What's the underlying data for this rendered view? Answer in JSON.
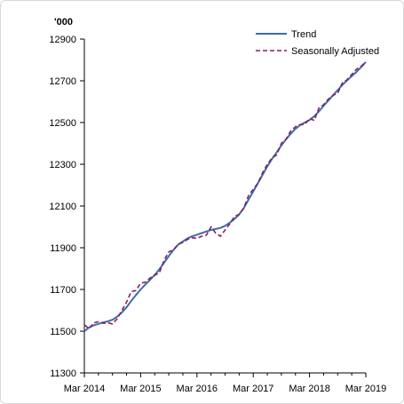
{
  "chart_data": {
    "type": "line",
    "unit_label": "'000",
    "ylim": [
      11300,
      12900
    ],
    "yticks": [
      11300,
      11500,
      11700,
      11900,
      12100,
      12300,
      12500,
      12700,
      12900
    ],
    "xlim": [
      0,
      60
    ],
    "xticks": [
      {
        "label": "Mar 2014",
        "x": 0
      },
      {
        "label": "Mar 2015",
        "x": 12
      },
      {
        "label": "Mar 2016",
        "x": 24
      },
      {
        "label": "Mar 2017",
        "x": 36
      },
      {
        "label": "Mar 2018",
        "x": 48
      },
      {
        "label": "Mar 2019",
        "x": 60
      }
    ],
    "legend_position": "top-right",
    "grid": false,
    "series": [
      {
        "name": "Trend",
        "color": "#3a6fa8",
        "style": "solid",
        "x": [
          0,
          1,
          2,
          3,
          4,
          5,
          6,
          7,
          8,
          9,
          10,
          11,
          12,
          13,
          14,
          15,
          16,
          17,
          18,
          19,
          20,
          21,
          22,
          23,
          24,
          25,
          26,
          27,
          28,
          29,
          30,
          31,
          32,
          33,
          34,
          35,
          36,
          37,
          38,
          39,
          40,
          41,
          42,
          43,
          44,
          45,
          46,
          47,
          48,
          49,
          50,
          51,
          52,
          53,
          54,
          55,
          56,
          57,
          58,
          59,
          60
        ],
        "values": [
          11500,
          11518,
          11528,
          11535,
          11542,
          11547,
          11555,
          11570,
          11590,
          11615,
          11645,
          11673,
          11700,
          11724,
          11746,
          11770,
          11797,
          11828,
          11860,
          11890,
          11915,
          11930,
          11945,
          11955,
          11962,
          11970,
          11978,
          11985,
          11990,
          11995,
          12005,
          12020,
          12038,
          12060,
          12090,
          12130,
          12170,
          12210,
          12250,
          12290,
          12325,
          12357,
          12390,
          12420,
          12447,
          12470,
          12488,
          12500,
          12512,
          12530,
          12553,
          12580,
          12605,
          12630,
          12655,
          12680,
          12702,
          12722,
          12742,
          12765,
          12790
        ]
      },
      {
        "name": "Seasonally Adjusted",
        "color": "#8b1c62",
        "style": "dashed",
        "x": [
          0,
          1,
          2,
          3,
          4,
          5,
          6,
          7,
          8,
          9,
          10,
          11,
          12,
          13,
          14,
          15,
          16,
          17,
          18,
          19,
          20,
          21,
          22,
          23,
          24,
          25,
          26,
          27,
          28,
          29,
          30,
          31,
          32,
          33,
          34,
          35,
          36,
          37,
          38,
          39,
          40,
          41,
          42,
          43,
          44,
          45,
          46,
          47,
          48,
          49,
          50,
          51,
          52,
          53,
          54,
          55,
          56,
          57,
          58,
          59,
          60
        ],
        "values": [
          11530,
          11512,
          11540,
          11545,
          11538,
          11540,
          11535,
          11560,
          11600,
          11640,
          11690,
          11695,
          11730,
          11735,
          11755,
          11768,
          11780,
          11840,
          11880,
          11890,
          11918,
          11925,
          11940,
          11948,
          11945,
          11955,
          11960,
          12000,
          11970,
          11955,
          11985,
          12015,
          12050,
          12060,
          12090,
          12150,
          12180,
          12210,
          12260,
          12300,
          12330,
          12345,
          12400,
          12420,
          12460,
          12480,
          12490,
          12490,
          12520,
          12510,
          12570,
          12585,
          12612,
          12630,
          12640,
          12690,
          12705,
          12730,
          12755,
          12770,
          12790
        ]
      }
    ]
  }
}
